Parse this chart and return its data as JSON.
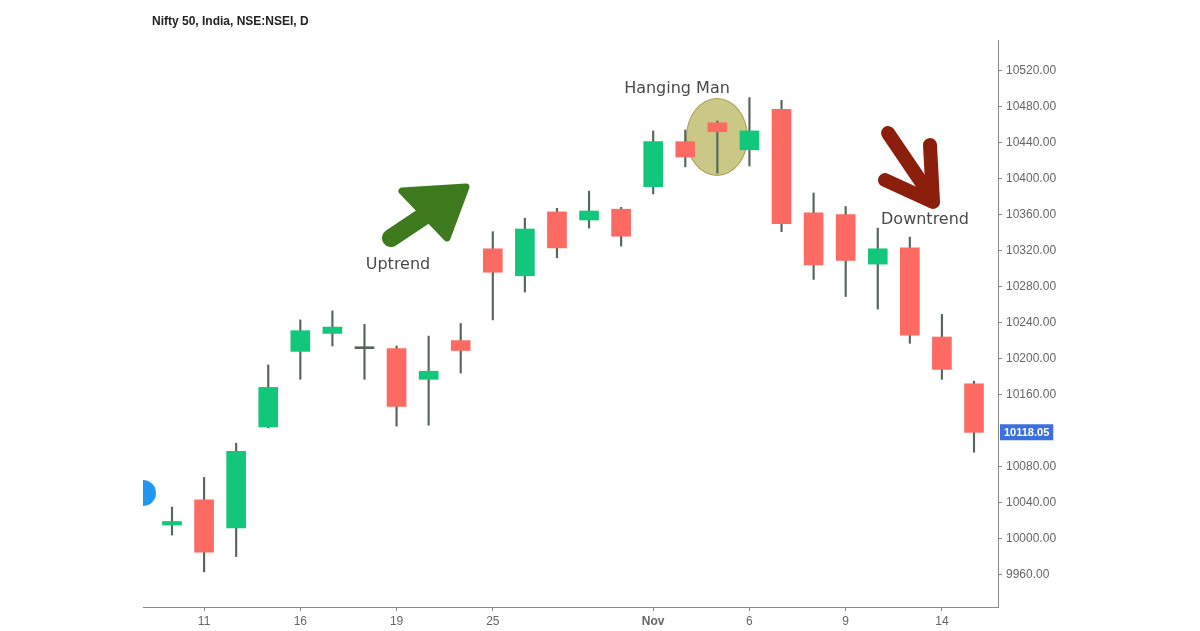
{
  "chart_data": {
    "type": "candlestick",
    "title": "Nifty 50, India, NSE:NSEI, D",
    "categories": [
      null,
      "11",
      null,
      null,
      "16",
      null,
      null,
      "19",
      null,
      null,
      "25",
      null,
      null,
      null,
      null,
      "Nov",
      null,
      null,
      "6",
      null,
      null,
      "9",
      null,
      null,
      "14",
      null
    ],
    "ohlc": [
      [
        10015,
        10035,
        10004,
        10019
      ],
      [
        10043,
        10068,
        9963,
        9985
      ],
      [
        10012,
        10106,
        9980,
        10097
      ],
      [
        10124,
        10193,
        10123,
        10168
      ],
      [
        10208,
        10243,
        10177,
        10231
      ],
      [
        10228,
        10253,
        10214,
        10235
      ],
      [
        10211,
        10238,
        10177,
        10211
      ],
      [
        10211,
        10214,
        10125,
        10147
      ],
      [
        10177,
        10225,
        10126,
        10186
      ],
      [
        10220,
        10239,
        10184,
        10209
      ],
      [
        10322,
        10341,
        10243,
        10296
      ],
      [
        10292,
        10356,
        10274,
        10344
      ],
      [
        10363,
        10367,
        10312,
        10323
      ],
      [
        10354,
        10386,
        10345,
        10364
      ],
      [
        10366,
        10368,
        10325,
        10336
      ],
      [
        10391,
        10453,
        10383,
        10441
      ],
      [
        10441,
        10454,
        10413,
        10424
      ],
      [
        10462,
        10464,
        10406,
        10452
      ],
      [
        10432,
        10490,
        10414,
        10453
      ],
      [
        10477,
        10487,
        10341,
        10350
      ],
      [
        10362,
        10384,
        10288,
        10304
      ],
      [
        10360,
        10369,
        10269,
        10309
      ],
      [
        10305,
        10345,
        10255,
        10322
      ],
      [
        10323,
        10335,
        10217,
        10226
      ],
      [
        10224,
        10249,
        10177,
        10188
      ],
      [
        10172,
        10175,
        10096,
        10118.05
      ]
    ],
    "colors": [
      "#12c77c",
      "#fd6a62",
      "#12c77c",
      "#12c77c",
      "#12c77c",
      "#12c77c",
      "#56665d",
      "#fd6a62",
      "#12c77c",
      "#fd6a62",
      "#fd6a62",
      "#12c77c",
      "#fd6a62",
      "#12c77c",
      "#fd6a62",
      "#12c77c",
      "#fd6a62",
      "#fd6a62",
      "#12c77c",
      "#fd6a62",
      "#fd6a62",
      "#fd6a62",
      "#12c77c",
      "#fd6a62",
      "#fd6a62",
      "#fd6a62"
    ],
    "ylim": [
      9924,
      10554
    ],
    "yticks": [
      {
        "value": 9960,
        "label": "9960.00"
      },
      {
        "value": 10000,
        "label": "10000.00"
      },
      {
        "value": 10040,
        "label": "10040.00"
      },
      {
        "value": 10080,
        "label": "10080.00"
      },
      {
        "value": 10160,
        "label": "10160.00"
      },
      {
        "value": 10200,
        "label": "10200.00"
      },
      {
        "value": 10240,
        "label": "10240.00"
      },
      {
        "value": 10280,
        "label": "10280.00"
      },
      {
        "value": 10320,
        "label": "10320.00"
      },
      {
        "value": 10360,
        "label": "10360.00"
      },
      {
        "value": 10400,
        "label": "10400.00"
      },
      {
        "value": 10440,
        "label": "10440.00"
      },
      {
        "value": 10480,
        "label": "10480.00"
      },
      {
        "value": 10520,
        "label": "10520.00"
      }
    ],
    "annotations": [
      "Uptrend",
      "Hanging Man",
      "Downtrend",
      "10118.05"
    ]
  }
}
